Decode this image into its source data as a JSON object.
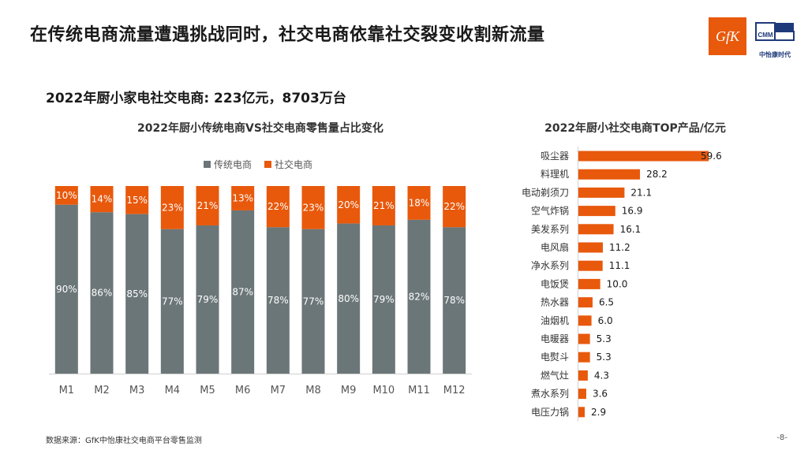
{
  "title": "在传统电商流量遭遇挑战同时，社交电商依靠社交裂变收割新流量",
  "subtitle": "2022年厨小家电社交电商: 223亿元，8703万台",
  "logos": {
    "gfk": "GfK",
    "cmm": "中怡康时代"
  },
  "source": "数据来源：GfK中怡康社交电商平台零售监测",
  "page_number": "-8-",
  "colors": {
    "traditional": "#6b7678",
    "social": "#e8590c"
  },
  "chart_data": [
    {
      "type": "bar",
      "stacked": true,
      "title": "2022年厨小传统电商VS社交电商零售量占比变化",
      "categories": [
        "M1",
        "M2",
        "M3",
        "M4",
        "M5",
        "M6",
        "M7",
        "M8",
        "M9",
        "M10",
        "M11",
        "M12"
      ],
      "series": [
        {
          "name": "传统电商",
          "values": [
            90,
            86,
            85,
            77,
            79,
            87,
            78,
            77,
            80,
            79,
            82,
            78
          ]
        },
        {
          "name": "社交电商",
          "values": [
            10,
            14,
            15,
            23,
            21,
            13,
            22,
            23,
            20,
            21,
            18,
            22
          ]
        }
      ],
      "ylim": [
        0,
        100
      ],
      "legend": "top-center",
      "grid": false
    },
    {
      "type": "bar",
      "orientation": "horizontal",
      "title": "2022年厨小社交电商TOP产品/亿元",
      "categories": [
        "吸尘器",
        "料理机",
        "电动剃须刀",
        "空气炸锅",
        "美发系列",
        "电风扇",
        "净水系列",
        "电饭煲",
        "热水器",
        "油烟机",
        "电暖器",
        "电熨斗",
        "燃气灶",
        "煮水系列",
        "电压力锅"
      ],
      "labels": [
        "59.6",
        "28.2",
        "21.1",
        "16.9",
        "16.1",
        "11.2",
        "11.1",
        "10.0",
        "6.5",
        "6.0",
        "5.3",
        "5.3",
        "4.3",
        "3.6",
        "2.9"
      ],
      "values": [
        59.6,
        28.2,
        21.1,
        16.9,
        16.1,
        11.2,
        11.1,
        10.0,
        6.5,
        6.0,
        5.3,
        5.3,
        4.3,
        3.6,
        2.9
      ],
      "grid": false
    }
  ]
}
